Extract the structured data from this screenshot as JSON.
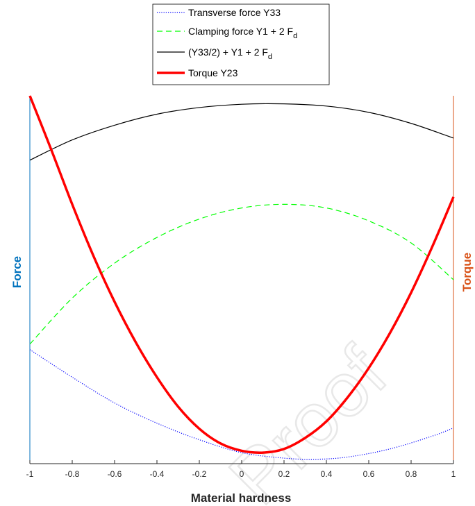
{
  "watermark": "Proof",
  "chart_data": {
    "type": "line",
    "title": "",
    "xlabel": "Material hardness",
    "ylabel_left": "Force",
    "ylabel_right": "Torque",
    "xlim": [
      -1,
      1
    ],
    "x_ticks": [
      -1,
      -0.8,
      -0.6,
      -0.4,
      -0.2,
      0,
      0.2,
      0.4,
      0.6,
      0.8,
      1
    ],
    "x_tick_labels": [
      "-1",
      "-0.8",
      "-0.6",
      "-0.4",
      "-0.2",
      "0",
      "0.2",
      "0.4",
      "0.6",
      "0.8",
      "1"
    ],
    "ylim": [
      0,
      1
    ],
    "grid": false,
    "legend_position": "top-center",
    "colors": {
      "left_axis": "#0072bd",
      "right_axis": "#d95319",
      "transverse": "#0000ff",
      "clamping": "#00ff00",
      "combined": "#000000",
      "torque": "#ff0000"
    },
    "series": [
      {
        "key": "transverse",
        "name": "Transverse force Y33",
        "name_main": "Transverse force Y33",
        "name_sub": "",
        "style": "dotted",
        "color": "#0000ff",
        "width": 1.2,
        "x": [
          -1,
          -0.8,
          -0.6,
          -0.4,
          -0.2,
          0,
          0.2,
          0.35,
          0.5,
          0.7,
          0.9,
          1
        ],
        "y": [
          0.31,
          0.235,
          0.165,
          0.11,
          0.065,
          0.03,
          0.015,
          0.012,
          0.018,
          0.04,
          0.075,
          0.097
        ]
      },
      {
        "key": "clamping",
        "name": "Clamping force Y1 + 2 Fd",
        "name_main": "Clamping force Y1 + 2 F",
        "name_sub": "d",
        "style": "dashed",
        "color": "#00ff00",
        "width": 1.2,
        "x": [
          -1,
          -0.8,
          -0.6,
          -0.4,
          -0.2,
          0,
          0.2,
          0.4,
          0.6,
          0.8,
          1
        ],
        "y": [
          0.325,
          0.45,
          0.545,
          0.615,
          0.665,
          0.695,
          0.705,
          0.695,
          0.66,
          0.6,
          0.5
        ]
      },
      {
        "key": "combined",
        "name": "(Y33/2) + Y1 + 2 Fd",
        "name_main": "(Y33/2) + Y1 + 2 F",
        "name_sub": "d",
        "style": "solid",
        "color": "#000000",
        "width": 1.2,
        "x": [
          -1,
          -0.8,
          -0.6,
          -0.4,
          -0.2,
          0,
          0.2,
          0.4,
          0.6,
          0.8,
          1
        ],
        "y": [
          0.825,
          0.88,
          0.92,
          0.95,
          0.968,
          0.977,
          0.978,
          0.972,
          0.955,
          0.925,
          0.885
        ]
      },
      {
        "key": "torque",
        "name": "Torque Y23",
        "name_main": "Torque Y23",
        "name_sub": "",
        "style": "solid",
        "color": "#ff0000",
        "width": 3.5,
        "x": [
          -1,
          -0.9,
          -0.8,
          -0.7,
          -0.6,
          -0.5,
          -0.4,
          -0.3,
          -0.2,
          -0.1,
          0,
          0.1,
          0.2,
          0.3,
          0.4,
          0.5,
          0.6,
          0.7,
          0.8,
          0.9,
          1
        ],
        "y": [
          1.0,
          0.855,
          0.705,
          0.565,
          0.44,
          0.33,
          0.235,
          0.155,
          0.095,
          0.055,
          0.035,
          0.03,
          0.04,
          0.07,
          0.115,
          0.18,
          0.26,
          0.355,
          0.465,
          0.59,
          0.725
        ]
      }
    ]
  }
}
